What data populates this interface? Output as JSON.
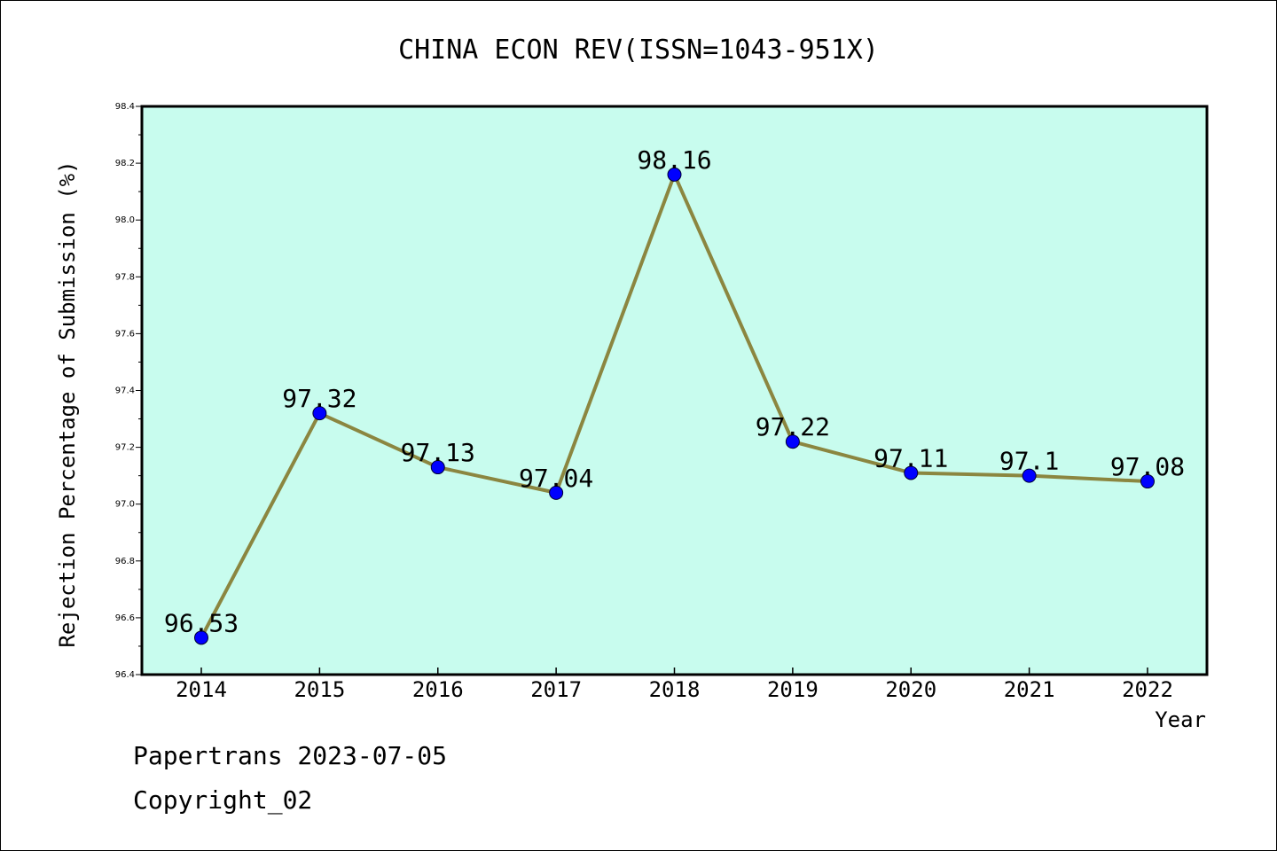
{
  "footer": {
    "line1": "Papertrans 2023-07-05",
    "line2": "Copyright_02"
  },
  "colors": {
    "plot_background": "#c8fcee",
    "line": "#8b8640",
    "marker": "#0000ff"
  },
  "chart_data": {
    "type": "line",
    "title": "CHINA ECON REV(ISSN=1043-951X)",
    "xlabel": "Year",
    "ylabel": "Rejection Percentage of Submission (%)",
    "categories": [
      "2014",
      "2015",
      "2016",
      "2017",
      "2018",
      "2019",
      "2020",
      "2021",
      "2022"
    ],
    "values": [
      96.53,
      97.32,
      97.13,
      97.04,
      98.16,
      97.22,
      97.11,
      97.1,
      97.08
    ],
    "data_labels": [
      "96.53",
      "97.32",
      "97.13",
      "97.04",
      "98.16",
      "97.22",
      "97.11",
      "97.1",
      "97.08"
    ],
    "ylim": [
      96.4,
      98.4
    ],
    "yticks": [
      "96.4",
      "96.6",
      "96.8",
      "97.0",
      "97.2",
      "97.4",
      "97.6",
      "97.8",
      "98.0",
      "98.2",
      "98.4"
    ],
    "grid": false,
    "legend": "none"
  }
}
